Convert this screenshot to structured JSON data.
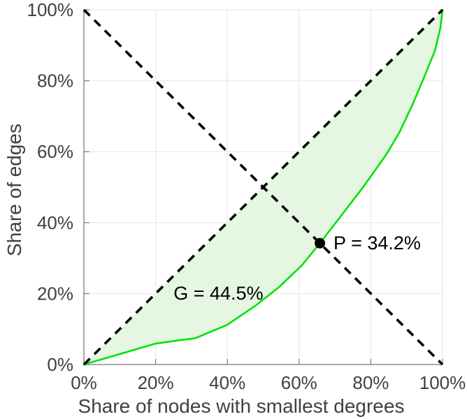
{
  "chart_data": {
    "type": "line",
    "title": "",
    "xlabel": "Share of nodes with smallest degrees",
    "ylabel": "Share of edges",
    "x_ticks": [
      "0%",
      "20%",
      "40%",
      "60%",
      "80%",
      "100%"
    ],
    "y_ticks": [
      "0%",
      "20%",
      "40%",
      "60%",
      "80%",
      "100%"
    ],
    "x_tick_values": [
      0,
      20,
      40,
      60,
      80,
      100
    ],
    "y_tick_values": [
      0,
      20,
      40,
      60,
      80,
      100
    ],
    "xlim": [
      0,
      100
    ],
    "ylim": [
      0,
      100
    ],
    "grid": true,
    "legend": "none",
    "colors": {
      "curve": "#00e400",
      "curve_fill": "#e5f6e3",
      "dashed_lines": "#000000",
      "axis": "#8c8c8c",
      "gridline": "#ededed",
      "tick_text": "#404040",
      "point": "#000000"
    },
    "series": [
      {
        "name": "lorenz-curve",
        "style": "solid",
        "color": "#00e400",
        "fill": "#e5f6e3",
        "x": [
          0,
          20,
          27,
          31,
          40,
          48,
          54.6,
          60.8,
          65.8,
          72,
          78,
          83,
          84.8,
          88,
          91.6,
          94.5,
          97.9,
          99.4,
          100
        ],
        "y": [
          0,
          5.9,
          6.9,
          7.4,
          11.2,
          16.7,
          22.0,
          28.0,
          34.2,
          42.3,
          50.2,
          57.3,
          60.0,
          65.5,
          73.2,
          80.1,
          88.5,
          94.9,
          100
        ]
      },
      {
        "name": "equality-diagonal",
        "style": "dashed",
        "color": "#000000",
        "x": [
          0,
          100
        ],
        "y": [
          0,
          100
        ]
      },
      {
        "name": "anti-diagonal",
        "style": "dashed",
        "color": "#000000",
        "x": [
          0,
          100
        ],
        "y": [
          100,
          0
        ]
      }
    ],
    "point": {
      "x": 65.8,
      "y": 34.2,
      "color": "#000000",
      "radius_px": 7.5
    },
    "annotations": [
      {
        "id": "p-label",
        "text": "P = 34.2%",
        "x": 69.6,
        "y": 32.5
      },
      {
        "id": "g-label",
        "text": "G = 44.5%",
        "x": 25.0,
        "y": 18.3
      }
    ]
  }
}
